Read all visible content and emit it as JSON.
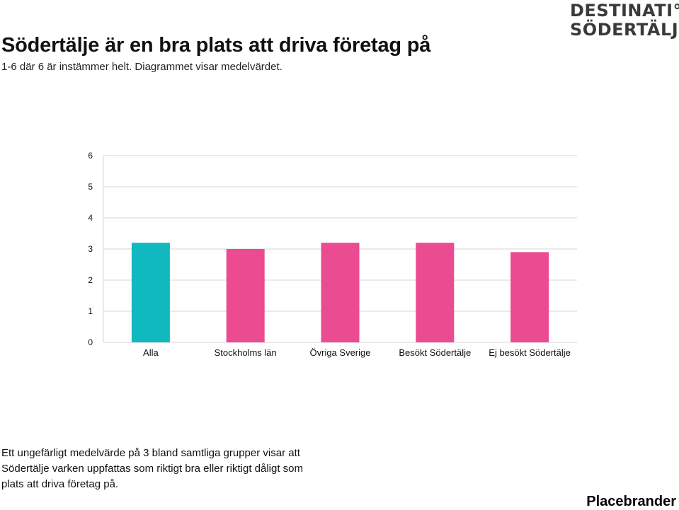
{
  "header": {
    "title": "Södertälje är en bra plats att driva företag på",
    "subtitle": "1-6 där 6 är instämmer helt. Diagrammet visar medelvärdet."
  },
  "logo": {
    "line1": "DESTINATI°N",
    "line2": "SÖDERTÄLJE"
  },
  "chart_data": {
    "type": "bar",
    "categories": [
      "Alla",
      "Stockholms län",
      "Övriga Sverige",
      "Besökt Södertälje",
      "Ej besökt Södertälje"
    ],
    "values": [
      3.2,
      3.0,
      3.2,
      3.2,
      2.9
    ],
    "colors": [
      "#10b8c0",
      "#ea4b91",
      "#ea4b91",
      "#ea4b91",
      "#ea4b91"
    ],
    "ylim": [
      0,
      6
    ],
    "yticks": [
      0,
      1,
      2,
      3,
      4,
      5,
      6
    ],
    "grid": true,
    "title": "",
    "xlabel": "",
    "ylabel": ""
  },
  "note": "Ett ungefärligt medelvärde på 3 bland samtliga grupper visar att Södertälje varken uppfattas som riktigt bra eller riktigt dåligt som plats att driva företag på.",
  "footer": {
    "brand": "Placebrander"
  }
}
